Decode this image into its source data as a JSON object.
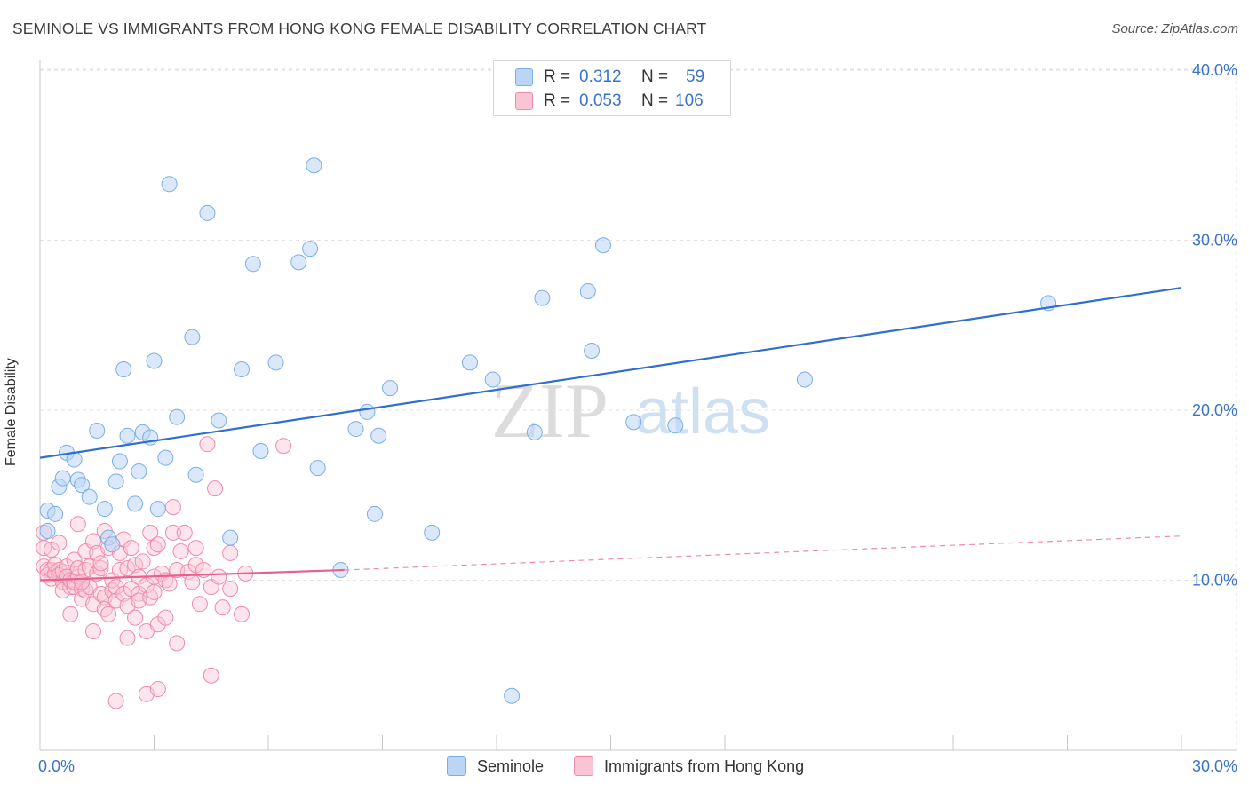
{
  "title": "SEMINOLE VS IMMIGRANTS FROM HONG KONG FEMALE DISABILITY CORRELATION CHART",
  "source": "Source: ZipAtlas.com",
  "watermark": {
    "zip": "ZIP",
    "atlas": "atlas"
  },
  "legend": {
    "r_label": "R =",
    "n_label": "N =",
    "series": [
      {
        "name": "Seminole",
        "r": "0.312",
        "n": "59",
        "color": "#7aaee8",
        "fill": "#bcd5f5",
        "text_color": "#3a73c9"
      },
      {
        "name": "Immigrants from Hong Kong",
        "r": "0.053",
        "n": "106",
        "color": "#f08aaa",
        "fill": "#f9c5d5",
        "text_color": "#3a73c9"
      }
    ]
  },
  "chart_data": {
    "type": "scatter",
    "title": "SEMINOLE VS IMMIGRANTS FROM HONG KONG FEMALE DISABILITY CORRELATION CHART",
    "xlabel": "",
    "ylabel": "Female Disability",
    "xlim": [
      0,
      30
    ],
    "ylim": [
      0,
      42
    ],
    "x_tick_labels": [
      "0.0%",
      "30.0%"
    ],
    "y_ticks": [
      10,
      20,
      30,
      40
    ],
    "y_tick_labels": [
      "10.0%",
      "20.0%",
      "30.0%",
      "40.0%"
    ],
    "series": [
      {
        "name": "Seminole",
        "trend": {
          "x": [
            0,
            30
          ],
          "y": [
            17.2,
            27.2
          ],
          "style": "solid"
        },
        "points": [
          [
            0.2,
            12.9
          ],
          [
            0.2,
            14.1
          ],
          [
            0.4,
            13.9
          ],
          [
            0.5,
            15.5
          ],
          [
            0.6,
            16.0
          ],
          [
            0.7,
            17.5
          ],
          [
            0.9,
            17.1
          ],
          [
            1.0,
            15.9
          ],
          [
            1.1,
            15.6
          ],
          [
            1.3,
            14.9
          ],
          [
            1.5,
            18.8
          ],
          [
            1.7,
            14.2
          ],
          [
            1.8,
            12.5
          ],
          [
            1.9,
            12.1
          ],
          [
            2.0,
            15.8
          ],
          [
            2.1,
            17.0
          ],
          [
            2.2,
            22.4
          ],
          [
            2.3,
            18.5
          ],
          [
            2.5,
            14.5
          ],
          [
            2.6,
            16.4
          ],
          [
            2.7,
            18.7
          ],
          [
            2.9,
            18.4
          ],
          [
            3.0,
            22.9
          ],
          [
            3.1,
            14.2
          ],
          [
            3.3,
            17.2
          ],
          [
            3.4,
            33.3
          ],
          [
            3.6,
            19.6
          ],
          [
            4.0,
            24.3
          ],
          [
            4.1,
            16.2
          ],
          [
            4.4,
            31.6
          ],
          [
            4.7,
            19.4
          ],
          [
            5.0,
            12.5
          ],
          [
            5.3,
            22.4
          ],
          [
            5.6,
            28.6
          ],
          [
            5.8,
            17.6
          ],
          [
            6.2,
            22.8
          ],
          [
            6.8,
            28.7
          ],
          [
            7.1,
            29.5
          ],
          [
            7.2,
            34.4
          ],
          [
            7.3,
            16.6
          ],
          [
            7.9,
            10.6
          ],
          [
            8.3,
            18.9
          ],
          [
            8.6,
            19.9
          ],
          [
            8.8,
            13.9
          ],
          [
            8.9,
            18.5
          ],
          [
            9.2,
            21.3
          ],
          [
            10.3,
            12.8
          ],
          [
            11.3,
            22.8
          ],
          [
            11.9,
            21.8
          ],
          [
            12.4,
            3.2
          ],
          [
            13.0,
            18.7
          ],
          [
            13.2,
            26.6
          ],
          [
            14.4,
            27.0
          ],
          [
            14.5,
            23.5
          ],
          [
            14.8,
            29.7
          ],
          [
            15.6,
            19.3
          ],
          [
            16.7,
            19.1
          ],
          [
            20.1,
            21.8
          ],
          [
            26.5,
            26.3
          ]
        ]
      },
      {
        "name": "Immigrants from Hong Kong",
        "trend": {
          "x": [
            0,
            8
          ],
          "y": [
            10.0,
            10.6
          ],
          "style": "solid",
          "dashed_extension": {
            "x": [
              8,
              30
            ],
            "y": [
              10.6,
              12.6
            ]
          }
        },
        "points": [
          [
            0.1,
            12.8
          ],
          [
            0.1,
            11.9
          ],
          [
            0.1,
            10.8
          ],
          [
            0.2,
            10.6
          ],
          [
            0.2,
            10.3
          ],
          [
            0.3,
            11.8
          ],
          [
            0.3,
            10.1
          ],
          [
            0.3,
            10.6
          ],
          [
            0.4,
            10.4
          ],
          [
            0.4,
            10.9
          ],
          [
            0.5,
            10.6
          ],
          [
            0.5,
            10.3
          ],
          [
            0.5,
            12.2
          ],
          [
            0.6,
            9.9
          ],
          [
            0.6,
            10.5
          ],
          [
            0.6,
            9.4
          ],
          [
            0.7,
            10.8
          ],
          [
            0.7,
            10.2
          ],
          [
            0.8,
            9.6
          ],
          [
            0.8,
            10.0
          ],
          [
            0.8,
            8.0
          ],
          [
            0.9,
            11.2
          ],
          [
            0.9,
            9.6
          ],
          [
            0.9,
            9.9
          ],
          [
            1.0,
            10.2
          ],
          [
            1.0,
            10.7
          ],
          [
            1.0,
            13.3
          ],
          [
            1.1,
            9.5
          ],
          [
            1.1,
            8.9
          ],
          [
            1.2,
            10.6
          ],
          [
            1.2,
            9.4
          ],
          [
            1.2,
            11.7
          ],
          [
            1.3,
            10.8
          ],
          [
            1.3,
            9.6
          ],
          [
            1.4,
            8.6
          ],
          [
            1.4,
            12.3
          ],
          [
            1.4,
            7.0
          ],
          [
            1.5,
            11.6
          ],
          [
            1.5,
            10.4
          ],
          [
            1.6,
            10.7
          ],
          [
            1.6,
            9.2
          ],
          [
            1.6,
            11.0
          ],
          [
            1.7,
            9.0
          ],
          [
            1.7,
            12.9
          ],
          [
            1.7,
            8.3
          ],
          [
            1.8,
            8.0
          ],
          [
            1.8,
            11.9
          ],
          [
            1.9,
            9.4
          ],
          [
            1.9,
            10.0
          ],
          [
            2.0,
            9.6
          ],
          [
            2.0,
            8.8
          ],
          [
            2.0,
            2.9
          ],
          [
            2.1,
            11.6
          ],
          [
            2.1,
            10.6
          ],
          [
            2.2,
            12.4
          ],
          [
            2.2,
            9.2
          ],
          [
            2.3,
            8.5
          ],
          [
            2.3,
            6.6
          ],
          [
            2.3,
            10.7
          ],
          [
            2.4,
            9.5
          ],
          [
            2.4,
            11.9
          ],
          [
            2.5,
            10.9
          ],
          [
            2.5,
            7.8
          ],
          [
            2.6,
            9.2
          ],
          [
            2.6,
            10.2
          ],
          [
            2.6,
            8.8
          ],
          [
            2.7,
            11.1
          ],
          [
            2.8,
            9.7
          ],
          [
            2.8,
            3.3
          ],
          [
            2.8,
            7.0
          ],
          [
            2.9,
            12.8
          ],
          [
            2.9,
            9.0
          ],
          [
            3.0,
            11.9
          ],
          [
            3.0,
            10.2
          ],
          [
            3.1,
            12.1
          ],
          [
            3.1,
            7.4
          ],
          [
            3.1,
            3.6
          ],
          [
            3.2,
            10.4
          ],
          [
            3.3,
            10.0
          ],
          [
            3.3,
            7.8
          ],
          [
            3.4,
            9.8
          ],
          [
            3.5,
            12.8
          ],
          [
            3.5,
            14.3
          ],
          [
            3.6,
            10.6
          ],
          [
            3.6,
            6.3
          ],
          [
            3.7,
            11.7
          ],
          [
            3.8,
            12.8
          ],
          [
            3.9,
            10.5
          ],
          [
            4.0,
            9.9
          ],
          [
            4.1,
            10.9
          ],
          [
            4.1,
            11.9
          ],
          [
            4.2,
            8.6
          ],
          [
            4.3,
            10.6
          ],
          [
            4.4,
            18.0
          ],
          [
            4.5,
            9.6
          ],
          [
            4.5,
            4.4
          ],
          [
            4.6,
            15.4
          ],
          [
            4.7,
            10.2
          ],
          [
            4.8,
            8.4
          ],
          [
            5.0,
            11.6
          ],
          [
            5.0,
            9.5
          ],
          [
            5.3,
            8.0
          ],
          [
            5.4,
            10.4
          ],
          [
            6.4,
            17.9
          ],
          [
            3.0,
            9.3
          ],
          [
            1.1,
            9.9
          ]
        ]
      }
    ]
  }
}
